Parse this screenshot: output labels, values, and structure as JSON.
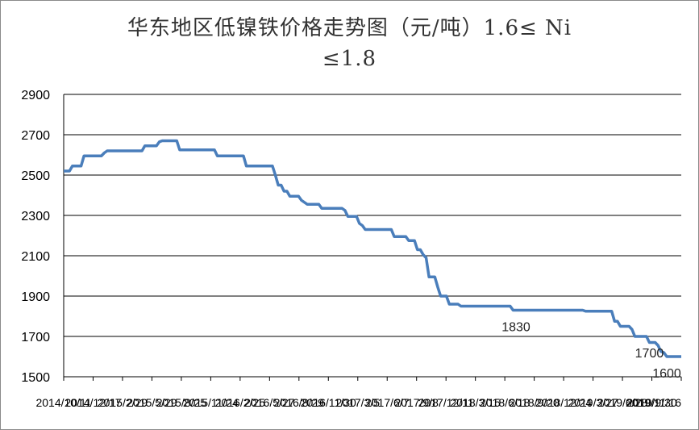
{
  "chart_data": {
    "type": "line",
    "title_line1": "华东地区低镍铁价格走势图（元/吨）1.6≤ Ni",
    "title_line2": "≤1.8",
    "ylim": [
      1500,
      2900
    ],
    "yticks": [
      1500,
      1700,
      1900,
      2100,
      2300,
      2500,
      2700,
      2900
    ],
    "grid": true,
    "legend": "none",
    "line_color": "#4a7ebb",
    "x_tick_labels": [
      "2014/10/11",
      "2014/12/17",
      "2015/2/29",
      "2015/5/29",
      "2015/8/25",
      "2015/11/24",
      "2016/2/25",
      "2016/5/27",
      "2016/8/29",
      "2016/11/30",
      "2017/3/5",
      "2017/6/7",
      "2017/9/8",
      "2017/12/11",
      "2018/3/15",
      "2018/6/18",
      "2018/9/20",
      "2018/12/24",
      "2019/3/27",
      "2019/6/28",
      "2019/9/30",
      "2019/11/16"
    ],
    "series": [
      {
        "values": [
          2520,
          2520,
          2520,
          2545,
          2545,
          2545,
          2545,
          2595,
          2595,
          2595,
          2595,
          2595,
          2595,
          2595,
          2610,
          2620,
          2620,
          2620,
          2620,
          2620,
          2620,
          2620,
          2620,
          2620,
          2620,
          2620,
          2620,
          2620,
          2645,
          2645,
          2645,
          2645,
          2645,
          2665,
          2670,
          2670,
          2670,
          2670,
          2670,
          2670,
          2625,
          2625,
          2625,
          2625,
          2625,
          2625,
          2625,
          2625,
          2625,
          2625,
          2625,
          2625,
          2625,
          2595,
          2595,
          2595,
          2595,
          2595,
          2595,
          2595,
          2595,
          2595,
          2595,
          2545,
          2545,
          2545,
          2545,
          2545,
          2545,
          2545,
          2545,
          2545,
          2545,
          2500,
          2450,
          2450,
          2420,
          2420,
          2395,
          2395,
          2395,
          2395,
          2375,
          2365,
          2355,
          2355,
          2355,
          2355,
          2355,
          2335,
          2335,
          2335,
          2335,
          2335,
          2335,
          2335,
          2335,
          2325,
          2295,
          2295,
          2295,
          2295,
          2260,
          2250,
          2230,
          2230,
          2230,
          2230,
          2230,
          2230,
          2230,
          2230,
          2230,
          2230,
          2195,
          2195,
          2195,
          2195,
          2195,
          2175,
          2175,
          2175,
          2130,
          2130,
          2105,
          2090,
          1995,
          1995,
          1995,
          1945,
          1900,
          1900,
          1900,
          1860,
          1860,
          1860,
          1860,
          1850,
          1850,
          1850,
          1850,
          1850,
          1850,
          1850,
          1850,
          1850,
          1850,
          1850,
          1850,
          1850,
          1850,
          1850,
          1850,
          1850,
          1850,
          1830,
          1830,
          1830,
          1830,
          1830,
          1830,
          1830,
          1830,
          1830,
          1830,
          1830,
          1830,
          1830,
          1830,
          1830,
          1830,
          1830,
          1830,
          1830,
          1830,
          1830,
          1830,
          1830,
          1830,
          1830,
          1825,
          1825,
          1825,
          1825,
          1825,
          1825,
          1825,
          1825,
          1825,
          1825,
          1775,
          1775,
          1750,
          1750,
          1750,
          1750,
          1735,
          1700,
          1700,
          1700,
          1700,
          1700,
          1670,
          1670,
          1670,
          1655,
          1625,
          1620,
          1600,
          1600,
          1600,
          1600,
          1600,
          1600
        ]
      }
    ],
    "annotations": [
      {
        "index": 156,
        "value": 1830,
        "text": "1830"
      },
      {
        "index": 202,
        "value": 1700,
        "text": "1700"
      },
      {
        "index": 208,
        "value": 1600,
        "text": "1600"
      }
    ]
  }
}
